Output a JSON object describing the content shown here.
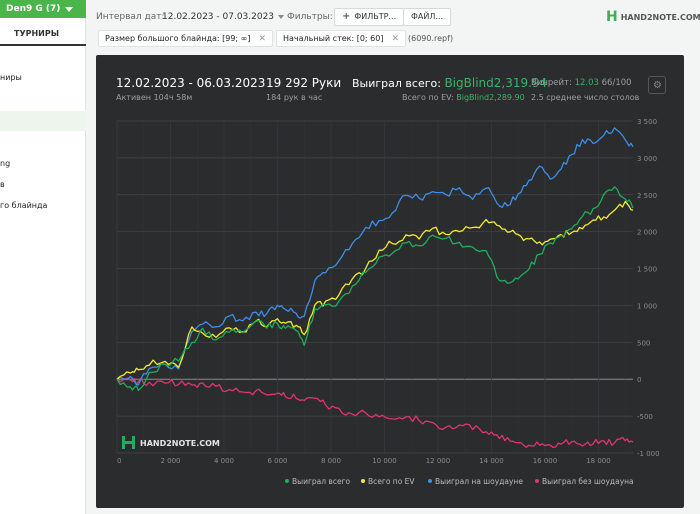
{
  "sidebar": {
    "user": "Den9 G (7)",
    "tab": "ТУРНИРЫ",
    "items": [
      "ниры",
      "ng",
      "в",
      "го блайнда"
    ]
  },
  "topbar": {
    "date_label": "Интервал дат:",
    "date_value": "12.02.2023 - 07.03.2023",
    "filters_label": "Фильтры:",
    "filter_button": "ФИЛЬТР...",
    "file_button": "ФАЙЛ...",
    "chips": [
      "Размер большого блайнда: [99; ∞]",
      "Начальный стек: [0; 60]"
    ],
    "chip_extra": "(6090.repf)",
    "logo": "HAND2NOTE.COM"
  },
  "summary": {
    "date_range": "12.02.2023 - 06.03.2023",
    "active": "Активен 104ч 58м",
    "hands": "19 292 Руки",
    "hands_per_hour": "184 рук в час",
    "won_label": "Выиграл всего:",
    "won_value": "BigBlind2,319.94",
    "ev_label": "Всего по EV:",
    "ev_value": "BigBlind2,289.90",
    "winrate_label": "Винрейт:",
    "winrate_value": "12.03",
    "winrate_sample": "66/100",
    "tables": "2.5 среднее число столов"
  },
  "colors": {
    "won": "#1fae5b",
    "ev": "#f2ea2c",
    "showdown": "#3d8ee8",
    "non_showdown": "#e0356c"
  },
  "chart_data": {
    "type": "line",
    "x_ticks": [
      "0",
      "2 000",
      "4 000",
      "6 000",
      "8 000",
      "10 000",
      "12 000",
      "14 000",
      "16 000",
      "18 000"
    ],
    "y_ticks": [
      "3 500",
      "3 000",
      "2 500",
      "2 000",
      "1 500",
      "1 000",
      "500",
      "0",
      "-500",
      "-1 000"
    ],
    "xlim": [
      0,
      19292
    ],
    "ylim": [
      -1000,
      3500
    ],
    "grid": true,
    "watermark": "HAND2NOTE.COM",
    "legend_position": "bottom-right",
    "series": [
      {
        "name": "Выиграл всего",
        "color": "#1fae5b",
        "x": [
          0,
          500,
          800,
          1200,
          1800,
          2300,
          2800,
          3200,
          3700,
          4200,
          4700,
          5200,
          5600,
          6000,
          6300,
          6700,
          7000,
          7400,
          7800,
          8300,
          8800,
          9300,
          9800,
          10300,
          10800,
          11300,
          11800,
          12300,
          12800,
          13300,
          13800,
          14200,
          14600,
          15000,
          15400,
          15800,
          16200,
          16600,
          17000,
          17400,
          17800,
          18200,
          18600,
          19000,
          19292
        ],
        "y": [
          0,
          -100,
          -150,
          80,
          200,
          250,
          500,
          680,
          520,
          650,
          630,
          800,
          700,
          750,
          700,
          650,
          450,
          950,
          1000,
          1050,
          1250,
          1450,
          1650,
          1700,
          1850,
          1800,
          1950,
          1900,
          1850,
          1800,
          1750,
          1400,
          1300,
          1350,
          1500,
          1700,
          1850,
          1950,
          2050,
          2200,
          2300,
          2500,
          2600,
          2450,
          2320
        ]
      },
      {
        "name": "Всего по EV",
        "color": "#f2ea2c",
        "x": [
          0,
          500,
          800,
          1200,
          1800,
          2300,
          2800,
          3200,
          3700,
          4200,
          4700,
          5200,
          5600,
          6000,
          6300,
          6700,
          7000,
          7400,
          7800,
          8300,
          8800,
          9300,
          9800,
          10300,
          10800,
          11300,
          11800,
          12300,
          12800,
          13300,
          13800,
          14200,
          14600,
          15000,
          15400,
          15800,
          16200,
          16600,
          17000,
          17400,
          17800,
          18200,
          18600,
          19000,
          19292
        ],
        "y": [
          0,
          80,
          120,
          200,
          250,
          150,
          700,
          620,
          580,
          700,
          650,
          780,
          720,
          820,
          750,
          720,
          600,
          1000,
          1050,
          1150,
          1350,
          1500,
          1750,
          1850,
          1950,
          1900,
          2050,
          1950,
          2000,
          2050,
          2150,
          2100,
          2000,
          1950,
          1900,
          1850,
          1900,
          1950,
          2000,
          2050,
          2150,
          2200,
          2300,
          2400,
          2290
        ]
      },
      {
        "name": "Выиграл на шоудауне",
        "color": "#3d8ee8",
        "x": [
          0,
          500,
          800,
          1200,
          1800,
          2300,
          2800,
          3200,
          3700,
          4200,
          4700,
          5200,
          5600,
          6000,
          6300,
          6700,
          7000,
          7400,
          7800,
          8300,
          8800,
          9300,
          9800,
          10300,
          10800,
          11300,
          11800,
          12300,
          12800,
          13300,
          13800,
          14200,
          14600,
          15000,
          15400,
          15800,
          16200,
          16600,
          17000,
          17400,
          17800,
          18200,
          18600,
          19000,
          19292
        ],
        "y": [
          0,
          50,
          -80,
          150,
          200,
          150,
          650,
          750,
          720,
          850,
          800,
          900,
          880,
          1000,
          950,
          900,
          850,
          1350,
          1450,
          1600,
          1850,
          2050,
          2150,
          2250,
          2500,
          2450,
          2550,
          2500,
          2600,
          2450,
          2600,
          2400,
          2350,
          2500,
          2700,
          2900,
          2700,
          2850,
          3050,
          3250,
          3200,
          3300,
          3400,
          3250,
          3150
        ]
      },
      {
        "name": "Выиграл без шоудауна",
        "color": "#e0356c",
        "x": [
          0,
          500,
          800,
          1200,
          1800,
          2300,
          2800,
          3200,
          3700,
          4200,
          4700,
          5200,
          5600,
          6000,
          6300,
          6700,
          7000,
          7400,
          7800,
          8300,
          8800,
          9300,
          9800,
          10300,
          10800,
          11300,
          11800,
          12300,
          12800,
          13300,
          13800,
          14200,
          14600,
          15000,
          15400,
          15800,
          16200,
          16600,
          17000,
          17400,
          17800,
          18200,
          18600,
          19000,
          19292
        ],
        "y": [
          0,
          -20,
          -30,
          -50,
          -40,
          -60,
          -80,
          -60,
          -100,
          -150,
          -170,
          -160,
          -220,
          -200,
          -230,
          -250,
          -300,
          -250,
          -350,
          -400,
          -480,
          -450,
          -500,
          -550,
          -500,
          -550,
          -600,
          -650,
          -620,
          -670,
          -700,
          -750,
          -800,
          -850,
          -900,
          -880,
          -900,
          -870,
          -850,
          -900,
          -870,
          -830,
          -870,
          -820,
          -850
        ]
      }
    ]
  }
}
